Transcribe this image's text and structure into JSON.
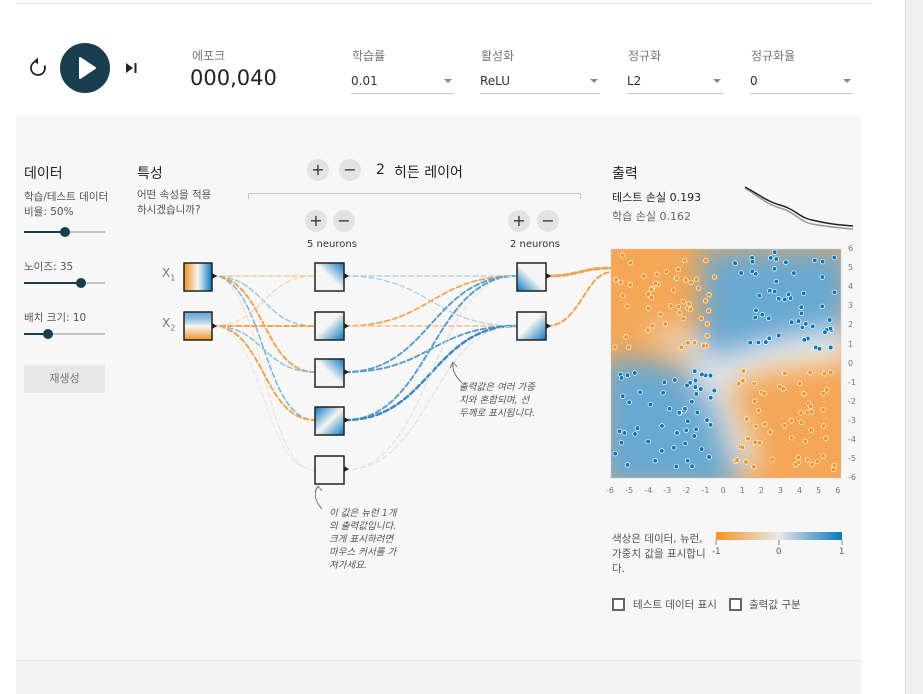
{
  "controls": {
    "epoch_label": "에포크",
    "epoch_value": "000,040",
    "learning_rate": {
      "label": "학습률",
      "value": "0.01"
    },
    "activation": {
      "label": "활성화",
      "value": "ReLU"
    },
    "regularization": {
      "label": "정규화",
      "value": "L2"
    },
    "regularization_rate": {
      "label": "정규화율",
      "value": "0"
    }
  },
  "data_panel": {
    "title": "데이터",
    "ratio_label": "학습/테스트 데이터 비율:",
    "ratio_value": "50%",
    "ratio_fraction": 0.5,
    "noise_label": "노이즈:",
    "noise_value": "35",
    "noise_fraction": 0.7,
    "batch_label": "배치 크기:",
    "batch_value": "10",
    "batch_fraction": 0.3,
    "regenerate_label": "재생성"
  },
  "features_panel": {
    "title": "특성",
    "subtitle": "어떤 속성을 적용하시겠습니까?",
    "features": [
      {
        "name": "X",
        "sub": "1"
      },
      {
        "name": "X",
        "sub": "2"
      }
    ]
  },
  "hidden_layers": {
    "add_sign": "+",
    "remove_sign": "−",
    "count": "2",
    "label": "히든 레이어",
    "layers": [
      {
        "neurons_label": "5 neurons"
      },
      {
        "neurons_label": "2 neurons"
      }
    ],
    "note_neuron": "이 값은 뉴런 1개의 출력값입니다. 크게 표시하려면 마우스 커서를 가져가세요.",
    "note_weights": "출력값은 여러 가중치와 혼합되며, 선 두께로 표시됩니다."
  },
  "output_panel": {
    "title": "출력",
    "test_loss_label": "테스트 손실",
    "test_loss_value": "0.193",
    "train_loss_label": "학습 손실",
    "train_loss_value": "0.162",
    "y_ticks": [
      "6",
      "5",
      "4",
      "3",
      "2",
      "1",
      "0",
      "-1",
      "-2",
      "-3",
      "-4",
      "-5",
      "-6"
    ],
    "x_ticks": [
      "-6",
      "-5",
      "-4",
      "-3",
      "-2",
      "-1",
      "0",
      "1",
      "2",
      "3",
      "4",
      "5",
      "6"
    ],
    "color_legend_text": "색상은 데이터, 뉴런, 가중치 값을 표시합니다.",
    "legend_min": "-1",
    "legend_mid": "0",
    "legend_max": "1",
    "show_test_data_label": "테스트 데이터 표시",
    "discretize_label": "출력값 구분",
    "colors": {
      "orange": "#f59322",
      "blue": "#0877bd",
      "dark": "#183d4e"
    }
  }
}
